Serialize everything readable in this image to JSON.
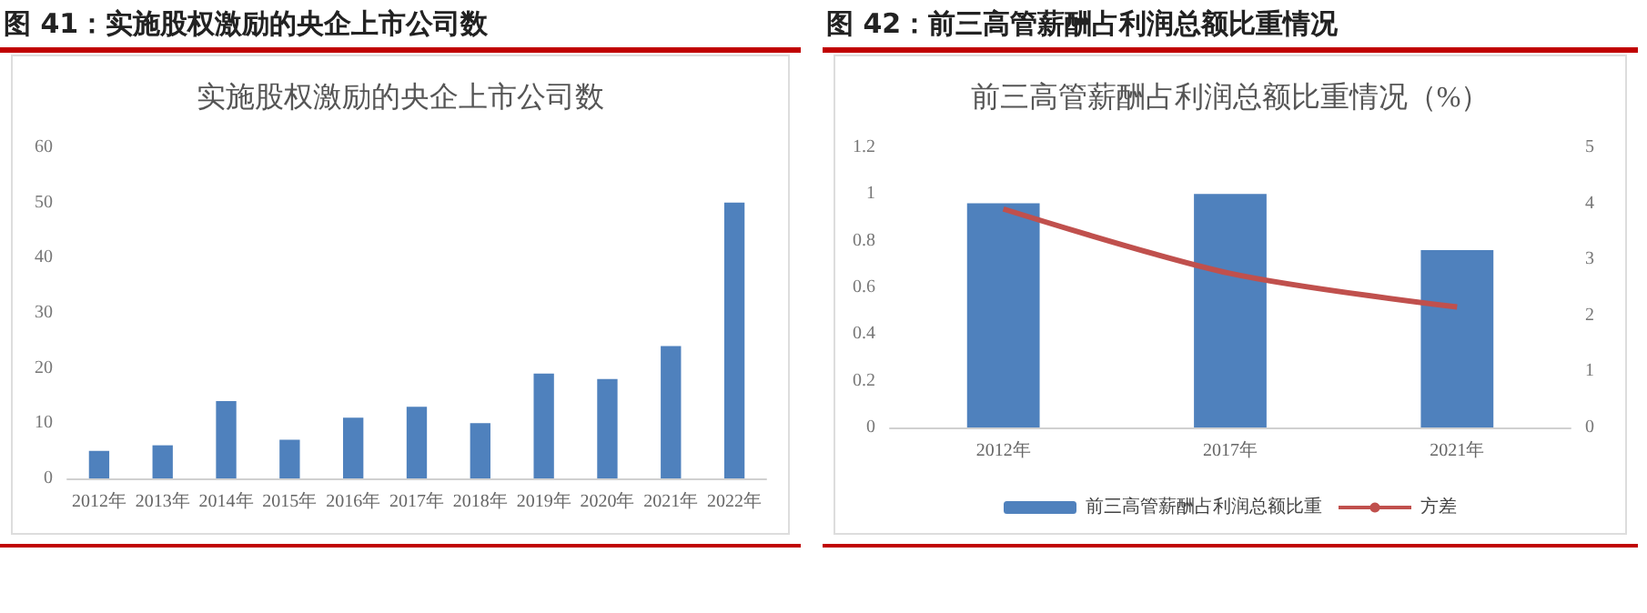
{
  "chart_data": [
    {
      "type": "bar",
      "title": "图 41：实施股权激励的央企上市公司数",
      "subtitle": "实施股权激励的央企上市公司数",
      "categories": [
        "2012年",
        "2013年",
        "2014年",
        "2015年",
        "2016年",
        "2017年",
        "2018年",
        "2019年",
        "2020年",
        "2021年",
        "2022年"
      ],
      "values": [
        5,
        6,
        14,
        7,
        11,
        13,
        10,
        19,
        18,
        24,
        50
      ],
      "color": "#4f81bd",
      "ylim": [
        0,
        60
      ],
      "yticks": [
        0,
        10,
        20,
        30,
        40,
        50,
        60
      ],
      "grid": false,
      "legend": false
    },
    {
      "type": "bar",
      "title": "图 42：前三高管薪酬占利润总额比重情况",
      "subtitle": "前三高管薪酬占利润总额比重情况（%）",
      "categories": [
        "2012年",
        "2017年",
        "2021年"
      ],
      "series": [
        {
          "name": "前三高管薪酬占利润总额比重",
          "color": "#4f81bd",
          "values": [
            0.96,
            1.0,
            0.76
          ]
        },
        {
          "name": "方差",
          "type": "line",
          "axis": "y2",
          "color": "#c0504d",
          "values": [
            3.9,
            2.75,
            2.15
          ]
        }
      ],
      "ylim": [
        0,
        1.2
      ],
      "yticks": [
        0,
        0.2,
        0.4,
        0.6,
        0.8,
        1,
        1.2
      ],
      "y2lim": [
        0,
        5
      ],
      "y2ticks": [
        0,
        1,
        2,
        3,
        4,
        5
      ],
      "grid": false,
      "legend": "bottom",
      "marker": "none",
      "line_style": "solid"
    }
  ]
}
